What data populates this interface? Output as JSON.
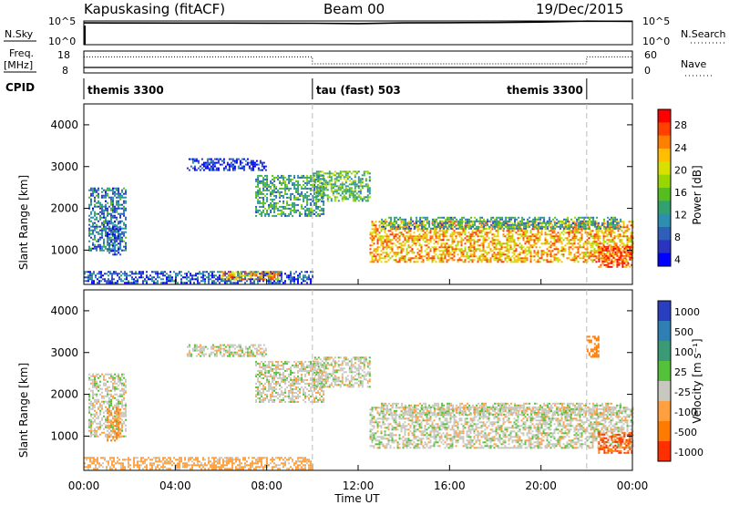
{
  "header": {
    "station": "Kapuskasing (fitACF)",
    "beam": "Beam 00",
    "date": "19/Dec/2015"
  },
  "labels": {
    "nsky": "N.Sky",
    "nsearch": "N.Search",
    "freq_line1": "Freq.",
    "freq_line2": "[MHz]",
    "nave": "Nave",
    "cpid": "CPID",
    "sky_ticks": [
      "10^5",
      "10^0"
    ],
    "search_ticks": [
      "10^5",
      "10^0"
    ],
    "freq_ticks": [
      "18",
      "8"
    ],
    "nave_ticks": [
      "60",
      "0"
    ]
  },
  "cpid_segments": [
    {
      "label": "themis 3300",
      "start_hour": 0,
      "end_hour": 10
    },
    {
      "label": "tau (fast) 503",
      "start_hour": 10,
      "end_hour": 22
    },
    {
      "label": "themis 3300",
      "start_hour": 22,
      "end_hour": 24
    }
  ],
  "axes": {
    "ylabel": "Slant Range [km]",
    "xlabel": "Time UT",
    "yticks": [
      "4000",
      "3000",
      "2000",
      "1000"
    ],
    "xticks": [
      "00:00",
      "04:00",
      "08:00",
      "12:00",
      "16:00",
      "20:00",
      "00:00"
    ]
  },
  "power_colorbar": {
    "label": "Power [dB]",
    "ticks": [
      "28",
      "24",
      "20",
      "16",
      "12",
      "8",
      "4"
    ],
    "colors": [
      "#ff0000",
      "#ff4000",
      "#ff8000",
      "#ffbf00",
      "#d7e000",
      "#9ad600",
      "#55bd1f",
      "#33a070",
      "#2e8eb0",
      "#2f5fb8",
      "#2b34c0",
      "#0000ff"
    ]
  },
  "velocity_colorbar": {
    "label": "Velocity [m s⁻¹]",
    "ticks": [
      "1000",
      "500",
      "100",
      "25",
      "-25",
      "-100",
      "-500",
      "-1000"
    ],
    "colors": [
      "#2a3fbf",
      "#2f7fb5",
      "#3a9a76",
      "#55c03a",
      "#c8c8c0",
      "#ffa040",
      "#ff7a00",
      "#ff3000"
    ]
  },
  "chart_data": [
    {
      "type": "line",
      "title": "N.Sky / N.Search",
      "x_unit": "hours UT",
      "series": [
        {
          "name": "N.Sky",
          "x": [
            0,
            2,
            4,
            6,
            8,
            10,
            12,
            14,
            16,
            18,
            20,
            22,
            24
          ],
          "y": [
            40000,
            38000,
            36000,
            36000,
            35000,
            33000,
            28000,
            40000,
            43000,
            48000,
            60000,
            90000,
            80000
          ]
        }
      ]
    },
    {
      "type": "line",
      "title": "Freq. [MHz] / Nave",
      "x_unit": "hours UT",
      "series": [
        {
          "name": "Freq.",
          "x": [
            0,
            24
          ],
          "y": [
            10.5,
            10.5
          ]
        },
        {
          "name": "Nave",
          "x": [
            0,
            10,
            10,
            22,
            22,
            24
          ],
          "y": [
            44,
            44,
            25,
            25,
            44,
            44
          ]
        }
      ]
    },
    {
      "type": "heatmap",
      "title": "Power [dB]",
      "x_unit": "hours UT",
      "y_unit": "km",
      "xlim": [
        0,
        24
      ],
      "ylim": [
        180,
        4500
      ],
      "regions": [
        {
          "x": [
            0.2,
            1.8
          ],
          "y": [
            1000,
            2500
          ],
          "value": 10
        },
        {
          "x": [
            1.0,
            1.6
          ],
          "y": [
            900,
            1700
          ],
          "value": 8
        },
        {
          "x": [
            4.5,
            8.0
          ],
          "y": [
            2900,
            3200
          ],
          "value": 6
        },
        {
          "x": [
            7.5,
            10.5
          ],
          "y": [
            1800,
            2800
          ],
          "value": 12
        },
        {
          "x": [
            10.0,
            12.5
          ],
          "y": [
            2200,
            2900
          ],
          "value": 14
        },
        {
          "x": [
            12.5,
            24.0
          ],
          "y": [
            700,
            1700
          ],
          "value": 22
        },
        {
          "x": [
            13.0,
            23.5
          ],
          "y": [
            1500,
            1800
          ],
          "value": 12
        },
        {
          "x": [
            22.5,
            24.0
          ],
          "y": [
            600,
            1100
          ],
          "value": 26
        },
        {
          "x": [
            0.0,
            10.0
          ],
          "y": [
            200,
            500
          ],
          "value": 8
        },
        {
          "x": [
            6.0,
            8.5
          ],
          "y": [
            300,
            500
          ],
          "value": 22
        }
      ]
    },
    {
      "type": "heatmap",
      "title": "Velocity [m s⁻¹]",
      "x_unit": "hours UT",
      "y_unit": "km",
      "xlim": [
        0,
        24
      ],
      "ylim": [
        180,
        4500
      ],
      "regions": [
        {
          "x": [
            0.2,
            1.8
          ],
          "y": [
            1000,
            2500
          ],
          "value": 0
        },
        {
          "x": [
            1.0,
            1.6
          ],
          "y": [
            900,
            1700
          ],
          "value": -100
        },
        {
          "x": [
            4.5,
            8.0
          ],
          "y": [
            2900,
            3200
          ],
          "value": 0
        },
        {
          "x": [
            7.5,
            10.5
          ],
          "y": [
            1800,
            2800
          ],
          "value": 0
        },
        {
          "x": [
            10.0,
            12.5
          ],
          "y": [
            2200,
            2900
          ],
          "value": 0
        },
        {
          "x": [
            12.5,
            24.0
          ],
          "y": [
            700,
            1700
          ],
          "value": 0
        },
        {
          "x": [
            13.0,
            23.5
          ],
          "y": [
            1500,
            1800
          ],
          "value": 0
        },
        {
          "x": [
            22.5,
            24.0
          ],
          "y": [
            600,
            1100
          ],
          "value": -500
        },
        {
          "x": [
            0.0,
            10.0
          ],
          "y": [
            200,
            500
          ],
          "value": -50
        },
        {
          "x": [
            22.0,
            22.5
          ],
          "y": [
            2900,
            3400
          ],
          "value": -300
        }
      ]
    }
  ]
}
